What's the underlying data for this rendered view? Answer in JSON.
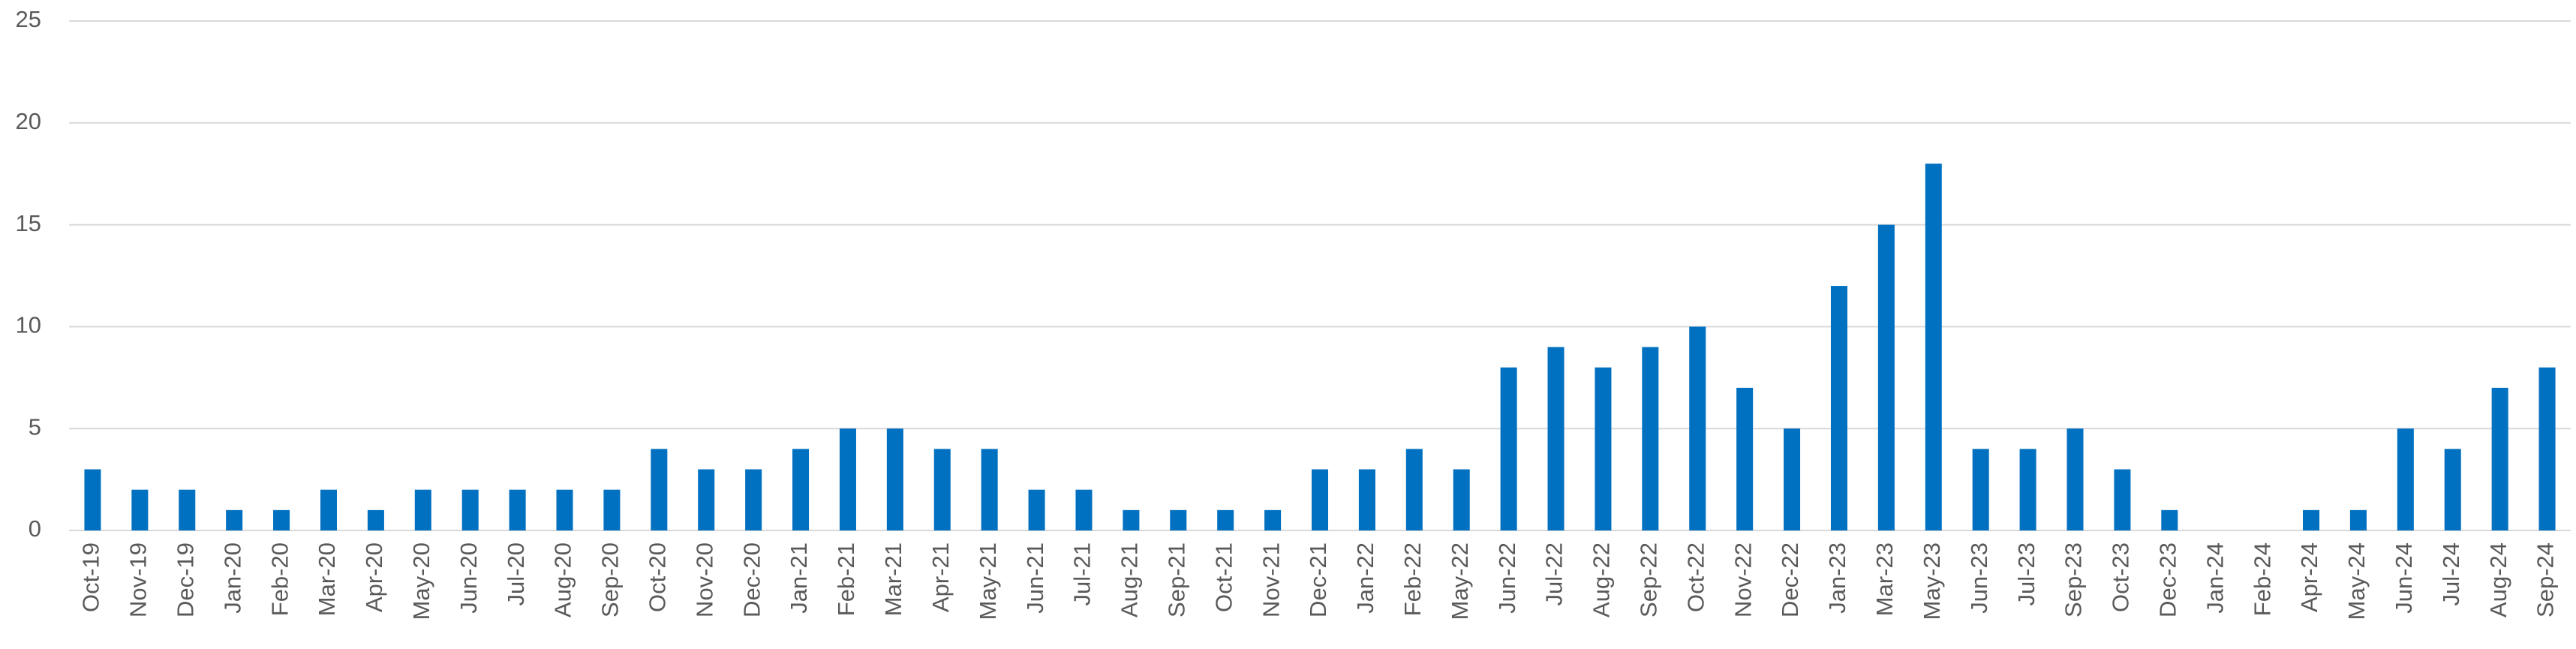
{
  "chart_data": {
    "type": "bar",
    "categories": [
      "Oct-19",
      "Nov-19",
      "Dec-19",
      "Jan-20",
      "Feb-20",
      "Mar-20",
      "Apr-20",
      "May-20",
      "Jun-20",
      "Jul-20",
      "Aug-20",
      "Sep-20",
      "Oct-20",
      "Nov-20",
      "Dec-20",
      "Jan-21",
      "Feb-21",
      "Mar-21",
      "Apr-21",
      "May-21",
      "Jun-21",
      "Jul-21",
      "Aug-21",
      "Sep-21",
      "Oct-21",
      "Nov-21",
      "Dec-21",
      "Jan-22",
      "Feb-22",
      "May-22",
      "Jun-22",
      "Jul-22",
      "Aug-22",
      "Sep-22",
      "Oct-22",
      "Nov-22",
      "Dec-22",
      "Jan-23",
      "Mar-23",
      "May-23",
      "Jun-23",
      "Jul-23",
      "Sep-23",
      "Oct-23",
      "Dec-23",
      "Jan-24",
      "Feb-24",
      "Apr-24",
      "May-24",
      "Jun-24",
      "Jul-24",
      "Aug-24",
      "Sep-24"
    ],
    "values": [
      3,
      2,
      2,
      1,
      1,
      2,
      1,
      2,
      2,
      2,
      2,
      2,
      4,
      3,
      3,
      4,
      5,
      5,
      4,
      4,
      2,
      2,
      1,
      1,
      1,
      1,
      3,
      3,
      4,
      3,
      8,
      9,
      8,
      9,
      10,
      7,
      5,
      12,
      15,
      18,
      4,
      4,
      5,
      3,
      1,
      0,
      0,
      1,
      1,
      5,
      4,
      7,
      8
    ],
    "color": "#0070c0",
    "ylim": [
      0,
      25
    ],
    "yticks": [
      0,
      5,
      10,
      15,
      20,
      25
    ],
    "grid": true
  }
}
